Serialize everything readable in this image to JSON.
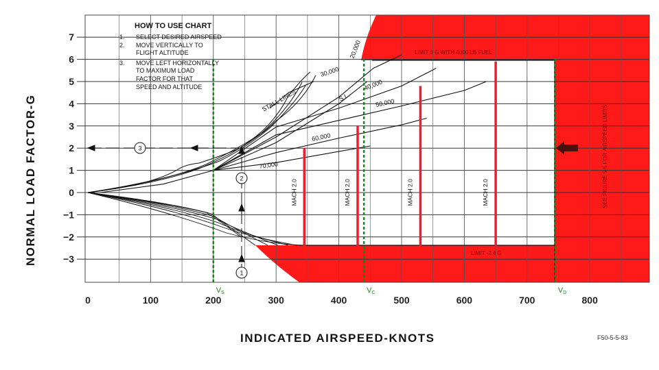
{
  "chart_data": {
    "type": "line",
    "title": "",
    "xlabel": "INDICATED AIRSPEED-KNOTS",
    "ylabel": "NORMAL LOAD FACTOR-G",
    "xlim": [
      0,
      890
    ],
    "ylim": [
      -4,
      8
    ],
    "xticks": [
      0,
      100,
      200,
      300,
      400,
      500,
      600,
      700,
      800
    ],
    "yticks": [
      7,
      6,
      5,
      4,
      3,
      2,
      1,
      0,
      -1,
      -2,
      -3
    ],
    "grid": true,
    "how_to": {
      "title": "HOW TO USE CHART",
      "steps": [
        {
          "num": "1.",
          "lines": [
            "SELECT DESIRED AIRSPEED"
          ]
        },
        {
          "num": "2.",
          "lines": [
            "MOVE VERTICALLY TO",
            "FLIGHT ALTITUDE"
          ]
        },
        {
          "num": "3.",
          "lines": [
            "MOVE LEFT HORIZONTALLY",
            "TO MAXIMUM LOAD",
            "FACTOR FOR THAT",
            "SPEED AND ALTITUDE"
          ]
        }
      ]
    },
    "stall_label": "STALL LINES",
    "altitude_labels": [
      "20,000",
      "30,000",
      "S.L.",
      "40,000",
      "50,000",
      "60,000",
      "70,000"
    ],
    "altitude_curves": [
      {
        "name": "S.L.",
        "points": [
          [
            20,
            0
          ],
          [
            120,
            0.38
          ],
          [
            200,
            1.0
          ],
          [
            300,
            2.25
          ],
          [
            400,
            4.0
          ],
          [
            445,
            5.0
          ]
        ]
      },
      {
        "name": "20,000",
        "points": [
          [
            200,
            1.0
          ],
          [
            300,
            2.5
          ],
          [
            400,
            4.3
          ],
          [
            455,
            5.6
          ],
          [
            500,
            6.2
          ]
        ]
      },
      {
        "name": "30,000",
        "points": [
          [
            290,
            3.8
          ],
          [
            320,
            4.5
          ],
          [
            360,
            5.0
          ]
        ]
      },
      {
        "name": "40,000",
        "points": [
          [
            200,
            1.0
          ],
          [
            300,
            2.95
          ],
          [
            400,
            3.8
          ],
          [
            500,
            4.8
          ],
          [
            555,
            5.6
          ]
        ]
      },
      {
        "name": "50,000",
        "points": [
          [
            200,
            1.0
          ],
          [
            300,
            2.6
          ],
          [
            400,
            3.25
          ],
          [
            500,
            3.9
          ],
          [
            600,
            4.6
          ],
          [
            635,
            5.0
          ]
        ]
      },
      {
        "name": "60,000",
        "points": [
          [
            200,
            1.0
          ],
          [
            300,
            1.8
          ],
          [
            400,
            2.45
          ],
          [
            500,
            3.05
          ],
          [
            540,
            3.35
          ]
        ]
      },
      {
        "name": "70,000",
        "points": [
          [
            200,
            1.0
          ],
          [
            300,
            1.35
          ],
          [
            400,
            1.85
          ],
          [
            450,
            2.1
          ]
        ]
      }
    ],
    "limit_labels": {
      "upper": "LIMIT 6 G WITH 4000 LB FUEL",
      "lower": "LIMIT -2.4 G",
      "side": "SEE FIGURE 5-5 FOR AIRSPEED LIMITS"
    },
    "mach_label": "MACH 2.0",
    "mach_lines": [
      {
        "x": 345,
        "top": 2.0
      },
      {
        "x": 430,
        "top": 3.0
      },
      {
        "x": 530,
        "top": 4.8
      },
      {
        "x": 650,
        "top": 5.9
      }
    ],
    "speed_markers": [
      {
        "label": "V",
        "sub": "S",
        "x": 200
      },
      {
        "label": "V",
        "sub": "C",
        "x": 440
      },
      {
        "label": "V",
        "sub": "D",
        "x": 745
      }
    ],
    "callouts": [
      "1",
      "2",
      "3"
    ],
    "figure_id": "F50-5-5-83",
    "colors": {
      "limit": "#ff1a1a",
      "mach": "#e8202f",
      "speed": "#0e8a16",
      "curve": "#111111"
    }
  }
}
